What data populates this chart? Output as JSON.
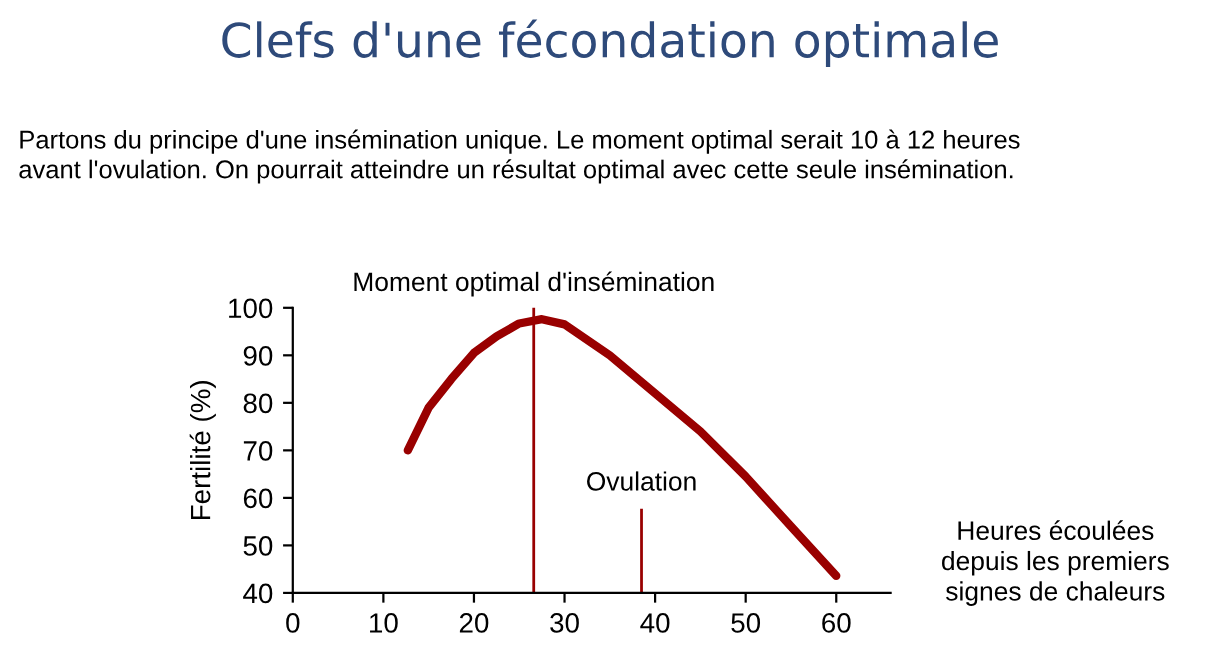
{
  "chart_data": {
    "type": "line",
    "title": "Clefs d'une fécondation optimale",
    "subtitle": "Partons du principe d'une insémination unique. Le moment optimal serait 10 à 12 heures\navant l'ovulation. On pourrait atteindre un résultat optimal avec cette seule insémination.",
    "xlabel": "Heures écoulées\ndepuis les premiers\nsignes de chaleurs",
    "ylabel": "Fertilité (%)",
    "series": [
      {
        "color": "#990000",
        "x": [
          12.7,
          15,
          17.5,
          20,
          22.5,
          25,
          27.5,
          30,
          35,
          40,
          45,
          50,
          55,
          60
        ],
        "values": [
          70,
          79,
          85,
          90.5,
          94,
          96.7,
          97.6,
          96.5,
          90,
          82,
          74,
          64.5,
          54,
          43.6
        ]
      }
    ],
    "xlim": [
      0,
      66
    ],
    "xticks": [
      0,
      10,
      20,
      30,
      40,
      50,
      60
    ],
    "ylim": [
      40,
      100
    ],
    "yticks": [
      40,
      50,
      60,
      70,
      80,
      90,
      100
    ],
    "ref_lines": [
      {
        "axis": "x",
        "value": 26.6,
        "label": "Moment optimal d'insémination",
        "color": "#990000"
      },
      {
        "axis": "x",
        "value": 38.5,
        "label": "Ovulation",
        "color": "#990000"
      }
    ],
    "grid": false,
    "legend": false,
    "marker": "none",
    "line_style": "solid"
  }
}
